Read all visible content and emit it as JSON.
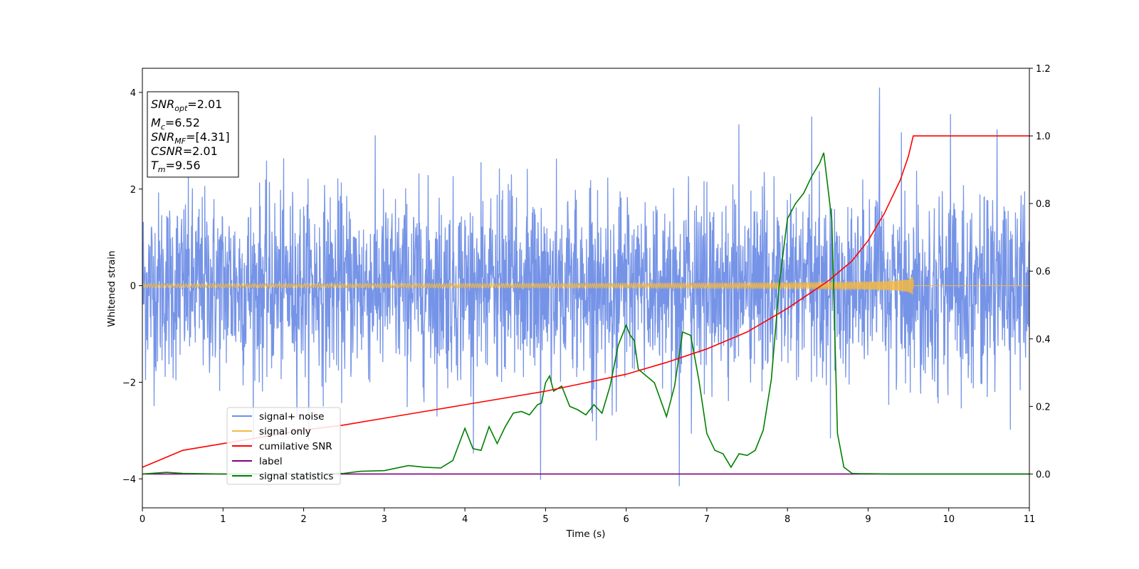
{
  "chart_data": {
    "type": "line",
    "xlabel": "Time (s)",
    "ylabel": "Whitened strain",
    "xlim": [
      0,
      11
    ],
    "ylim": [
      -4.6,
      4.5
    ],
    "y2lim": [
      -0.1,
      1.2
    ],
    "xticks": [
      "0",
      "1",
      "2",
      "3",
      "4",
      "5",
      "6",
      "7",
      "8",
      "9",
      "10",
      "11"
    ],
    "xtick_values": [
      0,
      1,
      2,
      3,
      4,
      5,
      6,
      7,
      8,
      9,
      10,
      11
    ],
    "yticks": [
      "4",
      "2",
      "0",
      "−2",
      "−4"
    ],
    "ytick_values": [
      4,
      2,
      0,
      -2,
      -4
    ],
    "y2ticks": [
      "1.2",
      "1.0",
      "0.8",
      "0.6",
      "0.4",
      "0.2",
      "0.0"
    ],
    "y2tick_values": [
      1.2,
      1.0,
      0.8,
      0.6,
      0.4,
      0.2,
      0.0
    ],
    "grid": false,
    "legend_position": "lower-left",
    "info_box": {
      "lines": [
        {
          "main": "SNR",
          "sub": "opt",
          "value": "=2.01"
        },
        {
          "main": "M",
          "sub": "c",
          "value": "=6.52"
        },
        {
          "main": "SNR",
          "sub": "MF",
          "value": "=[4.31]"
        },
        {
          "main": "CSNR",
          "sub": "",
          "value": "=2.01"
        },
        {
          "main": "T",
          "sub": "m",
          "value": "=9.56"
        }
      ]
    },
    "series": [
      {
        "name": "signal+ noise",
        "axis": "left",
        "color": "#6f8ee6",
        "style": "noise",
        "x_range": [
          0,
          11
        ],
        "band_sigma": 0.95,
        "peaks": [
          [
            9.14,
            4.1
          ],
          [
            6.66,
            -4.15
          ],
          [
            4.94,
            -4.02
          ],
          [
            8.3,
            3.5
          ],
          [
            10.02,
            3.55
          ]
        ]
      },
      {
        "name": "signal only",
        "axis": "left",
        "color": "#f5b942",
        "style": "chirp",
        "t_merger": 9.56,
        "peak_amplitude": 0.27
      },
      {
        "name": "cumilative SNR",
        "axis": "right",
        "color": "#ff0000",
        "x": [
          0,
          0.5,
          1,
          1.5,
          2,
          2.5,
          3,
          3.5,
          4,
          4.5,
          5,
          5.5,
          6,
          6.5,
          7,
          7.5,
          8,
          8.5,
          8.8,
          9.0,
          9.2,
          9.4,
          9.5,
          9.56,
          9.57,
          11
        ],
        "values": [
          0.02,
          0.07,
          0.09,
          0.11,
          0.13,
          0.145,
          0.165,
          0.185,
          0.205,
          0.225,
          0.245,
          0.27,
          0.295,
          0.33,
          0.37,
          0.42,
          0.49,
          0.57,
          0.63,
          0.69,
          0.77,
          0.87,
          0.94,
          1.0,
          1.0,
          1.0
        ]
      },
      {
        "name": "label",
        "axis": "right",
        "color": "#800080",
        "x": [
          0,
          11
        ],
        "values": [
          0,
          0
        ]
      },
      {
        "name": "signal statistics",
        "axis": "right",
        "color": "#008000",
        "x": [
          0,
          0.3,
          0.5,
          1,
          1.5,
          2,
          2.5,
          2.7,
          3,
          3.3,
          3.5,
          3.7,
          3.85,
          4,
          4.1,
          4.2,
          4.3,
          4.4,
          4.5,
          4.6,
          4.7,
          4.8,
          4.9,
          4.95,
          5,
          5.05,
          5.1,
          5.2,
          5.3,
          5.4,
          5.5,
          5.6,
          5.7,
          5.8,
          5.9,
          6,
          6.05,
          6.1,
          6.15,
          6.25,
          6.35,
          6.5,
          6.6,
          6.7,
          6.8,
          6.9,
          7,
          7.1,
          7.2,
          7.3,
          7.4,
          7.5,
          7.6,
          7.7,
          7.8,
          7.9,
          8.0,
          8.1,
          8.2,
          8.3,
          8.4,
          8.45,
          8.55,
          8.62,
          8.7,
          8.8,
          8.9,
          9,
          9.3,
          11
        ],
        "values": [
          0,
          0.005,
          0.002,
          0,
          0,
          0,
          0.002,
          0.008,
          0.01,
          0.025,
          0.02,
          0.018,
          0.04,
          0.135,
          0.075,
          0.07,
          0.14,
          0.09,
          0.14,
          0.18,
          0.185,
          0.175,
          0.205,
          0.21,
          0.27,
          0.29,
          0.245,
          0.26,
          0.2,
          0.19,
          0.175,
          0.205,
          0.18,
          0.26,
          0.38,
          0.44,
          0.41,
          0.395,
          0.31,
          0.29,
          0.27,
          0.17,
          0.26,
          0.42,
          0.41,
          0.28,
          0.12,
          0.07,
          0.06,
          0.02,
          0.06,
          0.055,
          0.07,
          0.13,
          0.28,
          0.565,
          0.755,
          0.8,
          0.83,
          0.88,
          0.92,
          0.95,
          0.75,
          0.12,
          0.02,
          0.002,
          0.001,
          0.001,
          0,
          0
        ]
      }
    ]
  }
}
